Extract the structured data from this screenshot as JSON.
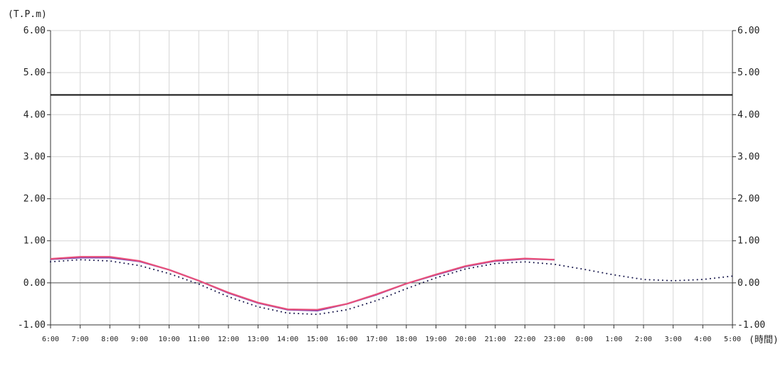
{
  "chart_data": {
    "type": "line",
    "y_unit_label": "(T.P.m)",
    "x_unit_label": "(時間)",
    "x": [
      "6:00",
      "7:00",
      "8:00",
      "9:00",
      "10:00",
      "11:00",
      "12:00",
      "13:00",
      "14:00",
      "15:00",
      "16:00",
      "17:00",
      "18:00",
      "19:00",
      "20:00",
      "21:00",
      "22:00",
      "23:00",
      "0:00",
      "1:00",
      "2:00",
      "3:00",
      "4:00",
      "5:00"
    ],
    "ylim": [
      -1.0,
      6.0
    ],
    "yticks": [
      "6.00",
      "5.00",
      "4.00",
      "3.00",
      "2.00",
      "1.00",
      "0.00",
      "-1.00"
    ],
    "ytick_values": [
      6,
      5,
      4,
      3,
      2,
      1,
      0,
      -1
    ],
    "grid": true,
    "reference_line": {
      "value": 4.47,
      "color": "#111111"
    },
    "zero_line": {
      "value": 0.0,
      "color": "#555555"
    },
    "series": [
      {
        "style": "dotted",
        "color": "#1a1a4e",
        "values": [
          0.5,
          0.55,
          0.52,
          0.41,
          0.22,
          -0.03,
          -0.33,
          -0.57,
          -0.72,
          -0.75,
          -0.64,
          -0.42,
          -0.14,
          0.12,
          0.33,
          0.46,
          0.5,
          0.44,
          0.32,
          0.19,
          0.08,
          0.05,
          0.08,
          0.16
        ]
      },
      {
        "style": "solid",
        "color": "#7a3fb0",
        "values": [
          0.56,
          0.6,
          0.6,
          0.51,
          0.31,
          0.05,
          -0.24,
          -0.48,
          -0.64,
          -0.66,
          -0.5,
          -0.28,
          -0.02,
          0.19,
          0.39,
          0.52,
          0.57,
          0.55,
          null,
          null,
          null,
          null,
          null,
          null
        ]
      },
      {
        "style": "solid",
        "color": "#e8507a",
        "values": [
          0.57,
          0.62,
          0.62,
          0.52,
          0.31,
          0.05,
          -0.23,
          -0.47,
          -0.63,
          -0.64,
          -0.5,
          -0.27,
          -0.02,
          0.2,
          0.4,
          0.53,
          0.58,
          0.55,
          null,
          null,
          null,
          null,
          null,
          null
        ]
      }
    ]
  }
}
